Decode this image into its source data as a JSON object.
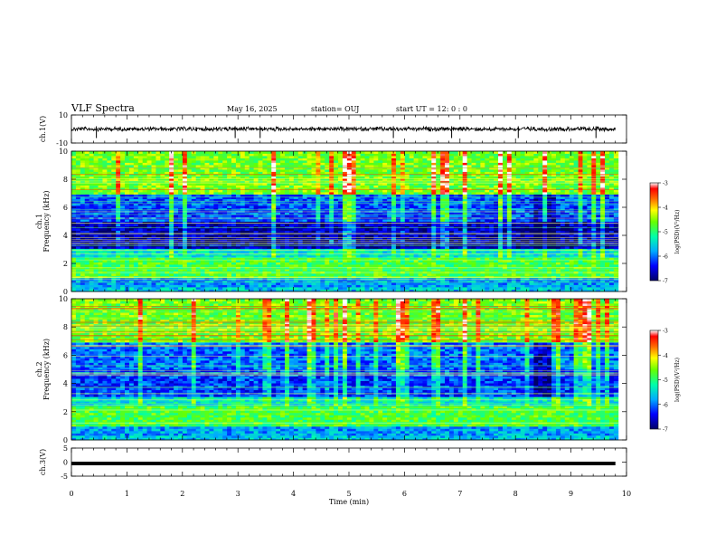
{
  "header": {
    "title": "VLF Spectra",
    "date": "May 16, 2025",
    "station": "station= OUJ",
    "start": "start  UT  =   12: 0  : 0"
  },
  "chart_data": [
    {
      "type": "line",
      "panel": "waveform-ch1",
      "ylabel": "ch.1(V)",
      "ylim": [
        -10,
        10
      ],
      "yticks": [
        10,
        -10
      ],
      "x_range_min": [
        0,
        9.8
      ],
      "baseline_level": 0,
      "spikes_min": [
        0.45,
        2.95,
        3.4,
        5.8,
        6.85,
        8.05,
        9.45
      ]
    },
    {
      "type": "heatmap",
      "panel": "spectrogram-ch1",
      "ylabel": "ch.1 Frequency (kHz)",
      "ylim": [
        0,
        10
      ],
      "yticks": [
        0,
        2,
        4,
        6,
        8,
        10
      ],
      "xlim": [
        0,
        10
      ],
      "colorbar": {
        "label": "log(PSD)(V²/Hz)",
        "range": [
          -7,
          -3
        ],
        "ticks": [
          "-3",
          "-4",
          "-5",
          "-6",
          "-7"
        ]
      }
    },
    {
      "type": "heatmap",
      "panel": "spectrogram-ch2",
      "ylabel": "ch.2 Frequency (kHz)",
      "ylim": [
        0,
        10
      ],
      "yticks": [
        0,
        2,
        4,
        6,
        8,
        10
      ],
      "xlim": [
        0,
        10
      ],
      "colorbar": {
        "label": "log(PSD)(V²/Hz)",
        "range": [
          -7,
          -3
        ],
        "ticks": [
          "-3",
          "-4",
          "-5",
          "-6",
          "-7"
        ]
      }
    },
    {
      "type": "line",
      "panel": "waveform-ch3",
      "ylabel": "ch.3(V)",
      "ylim": [
        -5,
        5
      ],
      "yticks": [
        5,
        0,
        -5
      ],
      "x_range_min": [
        0,
        9.8
      ],
      "level": -0.5
    }
  ],
  "xaxis": {
    "label": "Time  (min)",
    "ticks": [
      "0",
      "1",
      "2",
      "3",
      "4",
      "5",
      "6",
      "7",
      "8",
      "9",
      "10"
    ],
    "range": [
      0,
      10
    ]
  },
  "colors": {
    "colormap": [
      "#000066",
      "#0000ff",
      "#00aaff",
      "#00ffaa",
      "#66ff00",
      "#ffff00",
      "#ff6600",
      "#ff0000",
      "#ffffff"
    ]
  }
}
